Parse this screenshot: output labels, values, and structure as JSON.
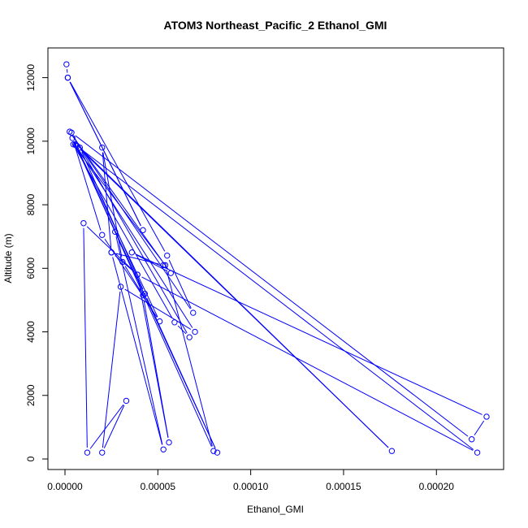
{
  "chart_data": {
    "type": "line",
    "title": "ATOM3 Northeast_Pacific_2 Ethanol_GMI",
    "xlabel": "Ethanol_GMI",
    "ylabel": "Altitude (m)",
    "xlim": [
      0,
      0.000227
    ],
    "ylim": [
      0,
      12450
    ],
    "x_ticks": [
      0,
      5e-05,
      0.0001,
      0.00015,
      0.0002
    ],
    "x_tick_labels": [
      "0.00000",
      "0.00005",
      "0.00010",
      "0.00015",
      "0.00020"
    ],
    "y_ticks": [
      0,
      2000,
      4000,
      6000,
      8000,
      10000,
      12000
    ],
    "y_tick_labels": [
      "0",
      "2000",
      "4000",
      "6000",
      "8000",
      "10000",
      "12000"
    ],
    "grid": false,
    "legend": "none",
    "series": [
      {
        "color": "#0000FF",
        "marker": "open-circle",
        "x": [
          8e-07,
          1.5e-06,
          4.2e-05,
          1.5e-06,
          5.5e-05,
          6.9e-05,
          2.5e-06,
          5.7e-05,
          3.6e-05,
          0.000227,
          0.000219,
          3.5e-06,
          6.7e-05,
          5.9e-05,
          4.5e-06,
          5.4e-05,
          8e-05,
          6e-06,
          5.1e-05,
          2e-05,
          4e-06,
          2.7e-05,
          5.3e-05,
          2.5e-05,
          3.9e-05,
          0.000222,
          6.5e-06,
          0.000176,
          8e-06,
          4.3e-05,
          8.2e-05,
          5.5e-06,
          7e-05,
          3e-05,
          2e-05,
          3.3e-05,
          1.2e-05,
          1e-05,
          3.9e-05,
          5.6e-05,
          4.2e-05,
          3.1e-05,
          2e-05,
          2.5e-05,
          5.3e-05
        ],
        "y": [
          12420,
          12000,
          7200,
          12000,
          6400,
          4600,
          10300,
          5850,
          6500,
          1330,
          620,
          10270,
          3830,
          4300,
          9900,
          6100,
          250,
          9870,
          4330,
          7050,
          10100,
          7150,
          300,
          6500,
          5800,
          200,
          9850,
          250,
          9800,
          5200,
          200,
          9900,
          4000,
          5420,
          200,
          1830,
          200,
          7420,
          5800,
          520,
          5150,
          6200,
          9800,
          6500,
          6100
        ]
      }
    ]
  }
}
